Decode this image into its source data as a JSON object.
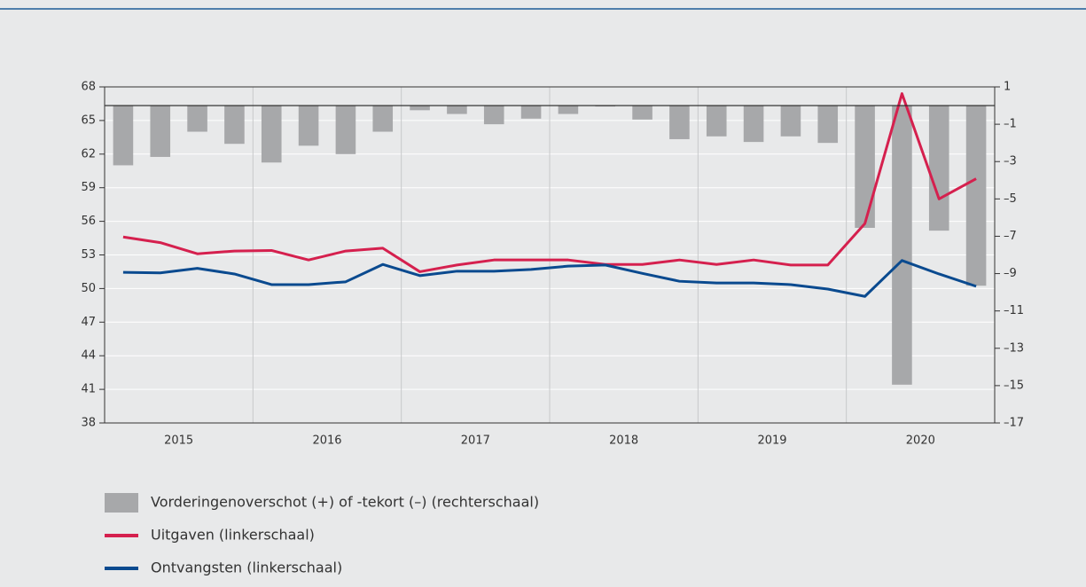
{
  "chart_data": {
    "type": "bar-line",
    "years": [
      "2015",
      "2016",
      "2017",
      "2018",
      "2019",
      "2020"
    ],
    "ylim": [
      38,
      68
    ],
    "yticks": [
      38,
      41,
      44,
      47,
      50,
      53,
      56,
      59,
      62,
      65,
      68
    ],
    "y2lim": [
      -17,
      1
    ],
    "y2ticks": [
      {
        "value": -17,
        "label": "–17"
      },
      {
        "value": -15,
        "label": "–15"
      },
      {
        "value": -13,
        "label": "–13"
      },
      {
        "value": -11,
        "label": "–11"
      },
      {
        "value": -9,
        "label": "–9"
      },
      {
        "value": -7,
        "label": "–7"
      },
      {
        "value": -5,
        "label": "–5"
      },
      {
        "value": -3,
        "label": "–3"
      },
      {
        "value": -1,
        "label": "–1"
      },
      1
    ],
    "grid": true,
    "series": [
      {
        "name": "Vorderingenoverschot (+) of -tekort (–) (rechterschaal)",
        "type": "bar",
        "axis": "y2",
        "color": "#a7a8aa",
        "values": [
          -3.2,
          -2.75,
          -1.4,
          -2.05,
          -3.05,
          -2.15,
          -2.6,
          -1.4,
          -0.25,
          -0.45,
          -1.0,
          -0.7,
          -0.45,
          -0.05,
          -0.75,
          -1.8,
          -1.65,
          -1.95,
          -1.65,
          -2.0,
          -6.55,
          -14.95,
          -6.7,
          -9.65
        ]
      },
      {
        "name": "Uitgaven (linkerschaal)",
        "type": "line",
        "color": "#d5204e",
        "values": [
          54.6,
          54.1,
          53.1,
          53.35,
          53.4,
          52.55,
          53.35,
          53.6,
          51.5,
          52.1,
          52.55,
          52.55,
          52.55,
          52.15,
          52.15,
          52.55,
          52.15,
          52.55,
          52.1,
          52.1,
          55.8,
          67.4,
          58.0,
          59.8
        ]
      },
      {
        "name": "Ontvangsten (linkerschaal)",
        "type": "line",
        "color": "#0a4a8f",
        "values": [
          51.45,
          51.4,
          51.8,
          51.3,
          50.35,
          50.35,
          50.6,
          52.15,
          51.15,
          51.55,
          51.55,
          51.7,
          52.0,
          52.1,
          51.35,
          50.65,
          50.5,
          50.5,
          50.35,
          49.95,
          49.3,
          52.5,
          51.3,
          50.2
        ]
      }
    ]
  }
}
